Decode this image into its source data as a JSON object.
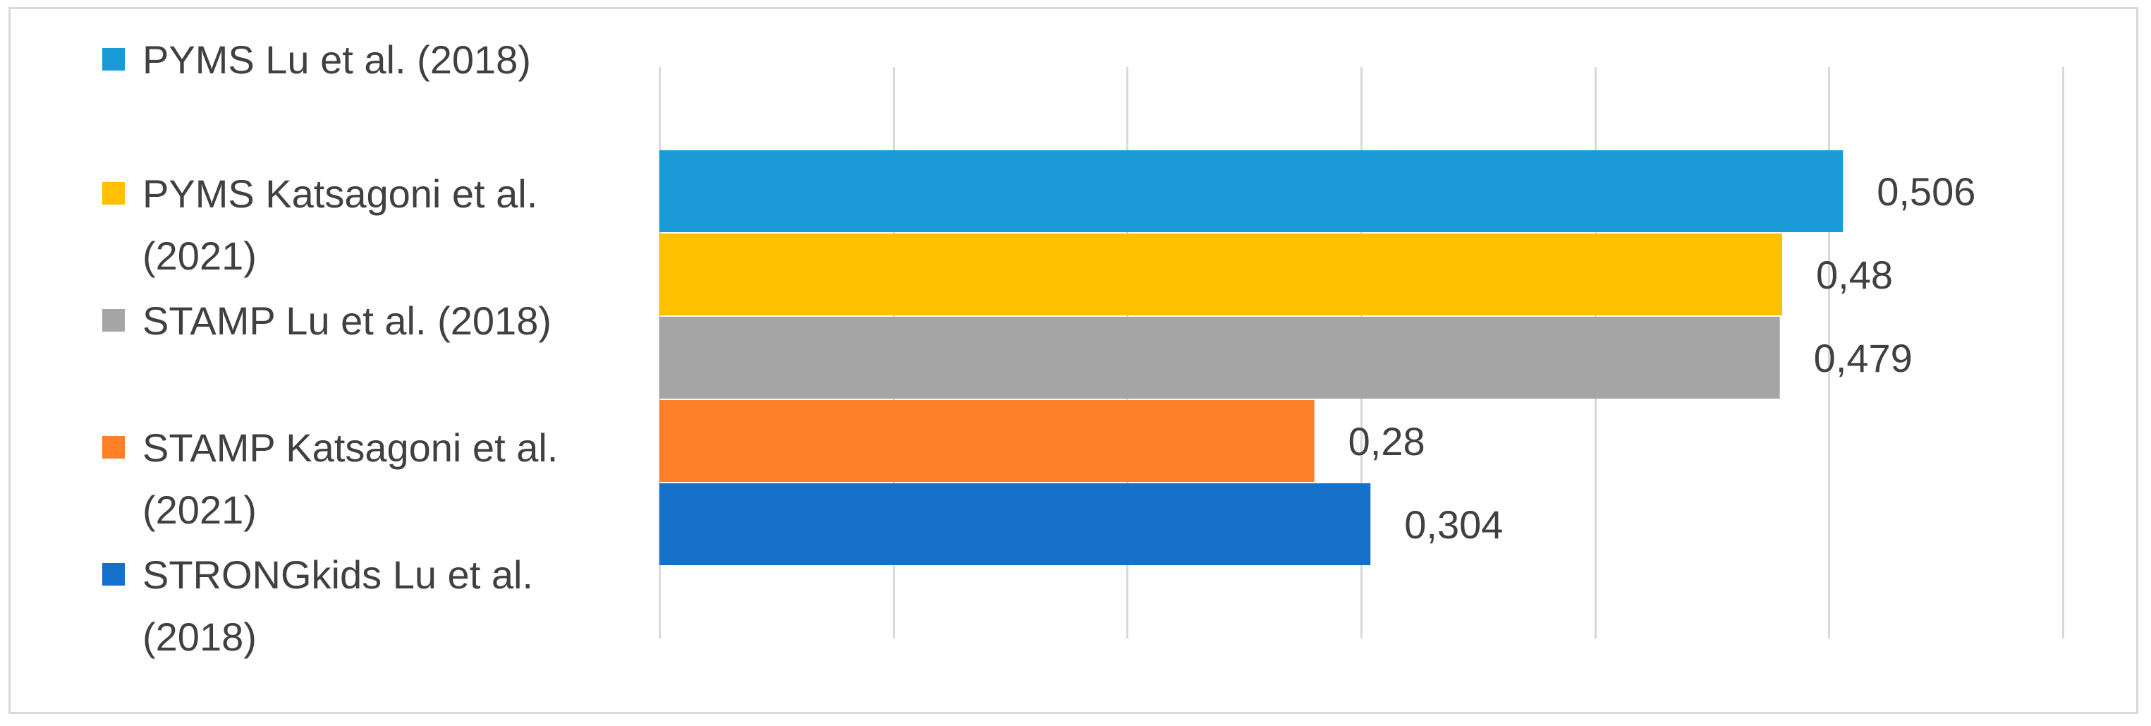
{
  "chart_data": {
    "type": "bar",
    "orientation": "horizontal",
    "title": "",
    "xlabel": "",
    "ylabel": "",
    "xlim": [
      0,
      0.6
    ],
    "grid": true,
    "legend_position": "left",
    "decimal_separator": ",",
    "series": [
      {
        "name": "PYMS Lu et al. (2018)",
        "name_lines": [
          "PYMS Lu et al. (2018)"
        ],
        "value": 0.506,
        "label": "0,506",
        "color": "#1a9ad6"
      },
      {
        "name": "PYMS Katsagoni et al. (2021)",
        "name_lines": [
          "PYMS Katsagoni et al.",
          "(2021)"
        ],
        "value": 0.48,
        "label": "0,48",
        "color": "#ffc000"
      },
      {
        "name": "STAMP Lu et al. (2018)",
        "name_lines": [
          "STAMP Lu et al. (2018)"
        ],
        "value": 0.479,
        "label": "0,479",
        "color": "#a5a5a5"
      },
      {
        "name": "STAMP Katsagoni et al. (2021)",
        "name_lines": [
          "STAMP Katsagoni et al.",
          "(2021)"
        ],
        "value": 0.28,
        "label": "0,28",
        "color": "#fd7f27"
      },
      {
        "name": "STRONGkids Lu et al. (2018)",
        "name_lines": [
          "STRONGkids Lu et al.",
          "(2018)"
        ],
        "value": 0.304,
        "label": "0,304",
        "color": "#1570c9"
      }
    ]
  }
}
